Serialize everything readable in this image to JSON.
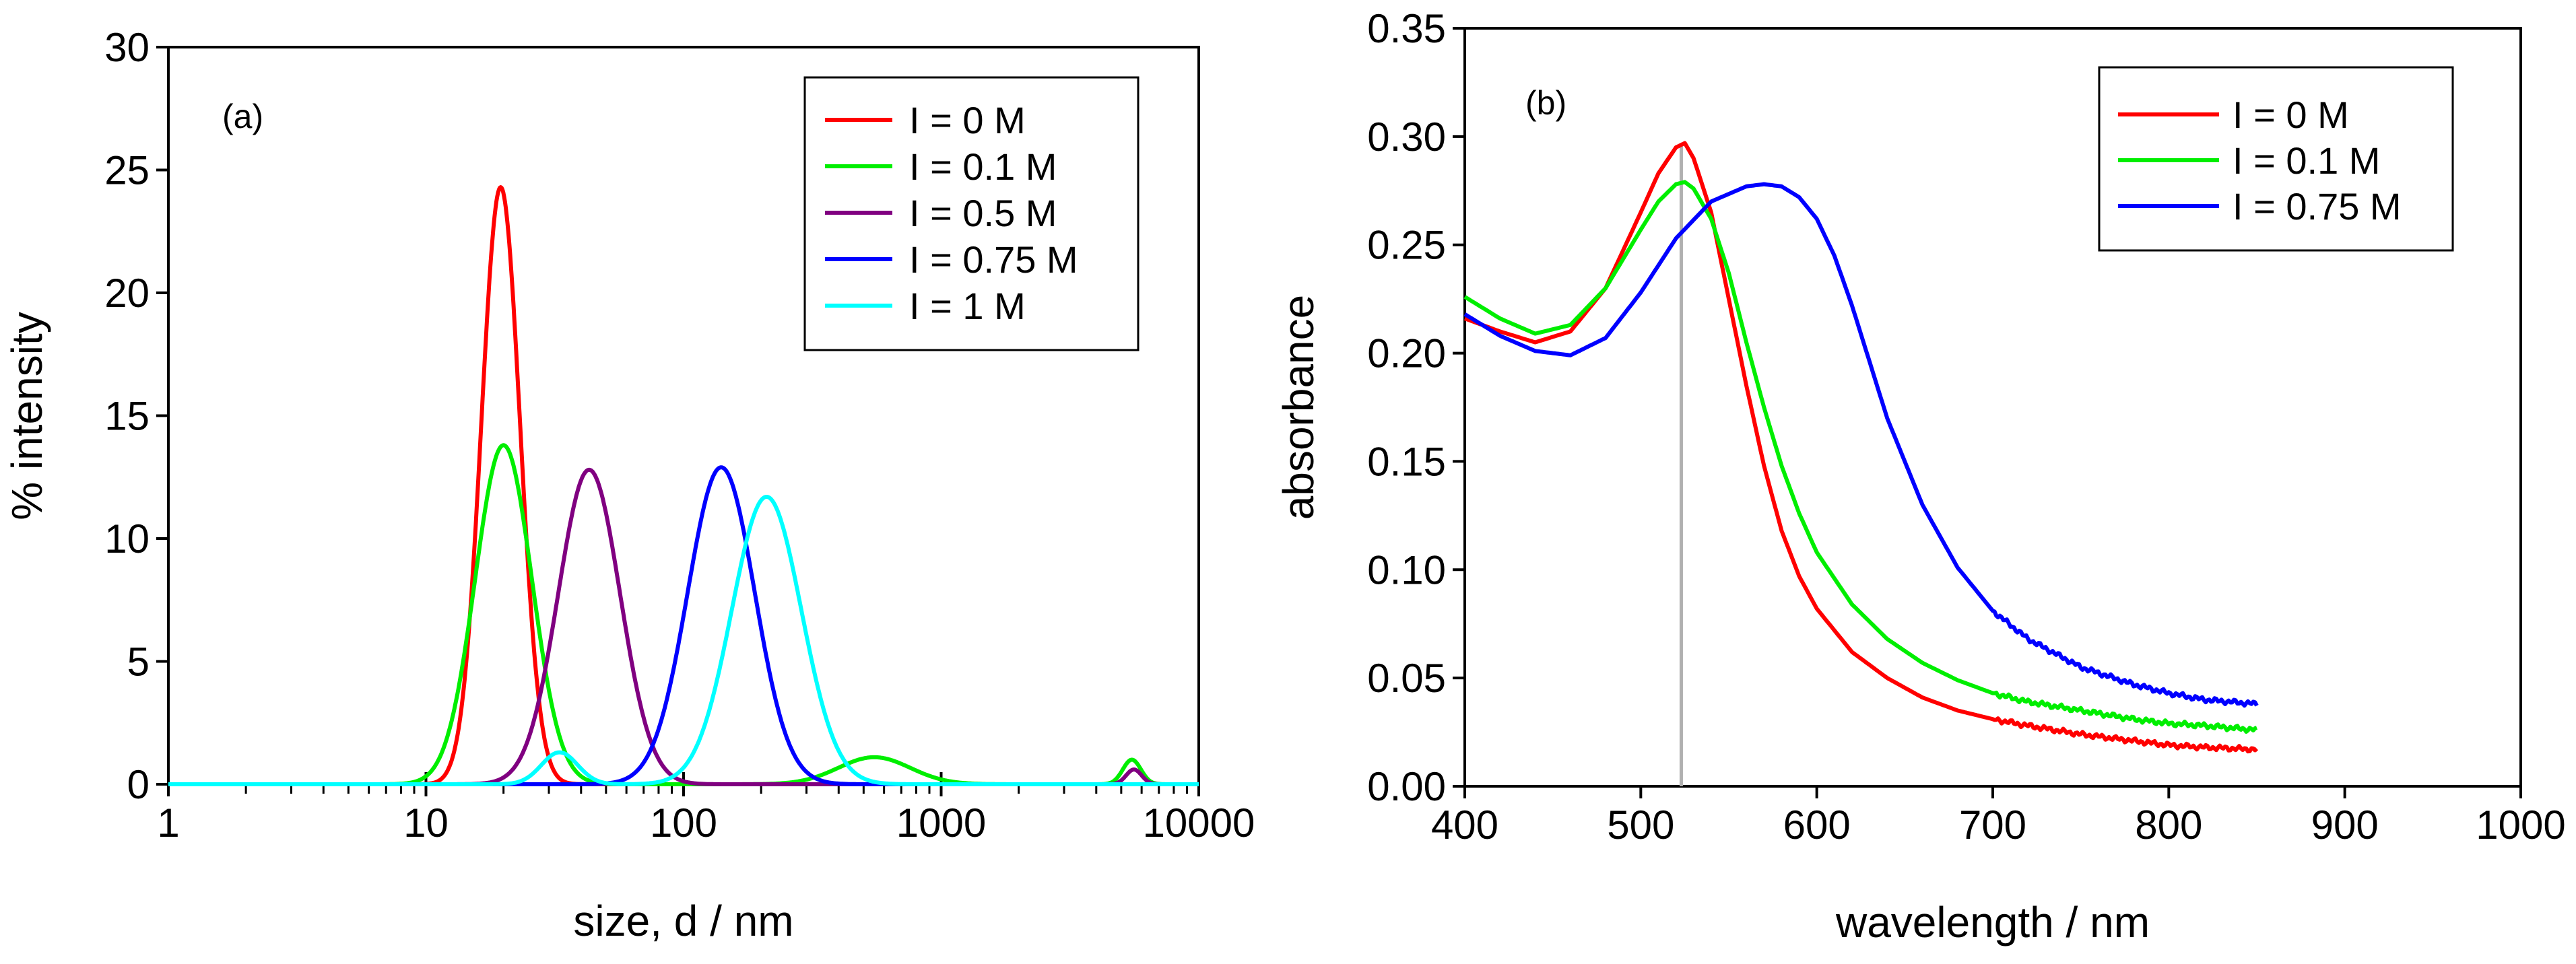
{
  "figure": {
    "background": "#ffffff"
  },
  "chart_data": [
    {
      "id": "a",
      "type": "line",
      "panel_label": "(a)",
      "title": "",
      "xlabel": "size, d / nm",
      "ylabel": "% intensity",
      "x_scale": "log",
      "xlim": [
        1,
        10000
      ],
      "ylim": [
        0,
        30
      ],
      "x_ticks": [
        1,
        10,
        100,
        1000,
        10000
      ],
      "x_tick_labels": [
        "1",
        "10",
        "100",
        "1000",
        "10000"
      ],
      "y_ticks": [
        0,
        5,
        10,
        15,
        20,
        25,
        30
      ],
      "y_tick_labels": [
        "0",
        "5",
        "10",
        "15",
        "20",
        "25",
        "30"
      ],
      "grid": false,
      "legend_position": "top-right",
      "series": [
        {
          "name": "I = 0 M",
          "color": "#ff0000",
          "components": [
            {
              "center": 19.5,
              "sigma_log10": 0.075,
              "height": 24.3
            }
          ]
        },
        {
          "name": "I = 0.1 M",
          "color": "#00ee00",
          "components": [
            {
              "center": 20,
              "sigma_log10": 0.11,
              "height": 13.8
            },
            {
              "center": 550,
              "sigma_log10": 0.14,
              "height": 1.1
            },
            {
              "center": 5500,
              "sigma_log10": 0.035,
              "height": 1.0
            }
          ]
        },
        {
          "name": "I = 0.5 M",
          "color": "#800080",
          "components": [
            {
              "center": 43,
              "sigma_log10": 0.12,
              "height": 12.8
            },
            {
              "center": 5600,
              "sigma_log10": 0.03,
              "height": 0.6
            }
          ]
        },
        {
          "name": "I = 0.75 M",
          "color": "#0000ff",
          "components": [
            {
              "center": 140,
              "sigma_log10": 0.13,
              "height": 12.9
            }
          ]
        },
        {
          "name": "I = 1 M",
          "color": "#00ffff",
          "components": [
            {
              "center": 33,
              "sigma_log10": 0.07,
              "height": 1.3
            },
            {
              "center": 210,
              "sigma_log10": 0.135,
              "height": 11.7
            }
          ]
        }
      ]
    },
    {
      "id": "b",
      "type": "line",
      "panel_label": "(b)",
      "title": "",
      "xlabel": "wavelength / nm",
      "ylabel": "absorbance",
      "x_scale": "linear",
      "xlim": [
        400,
        1000
      ],
      "ylim": [
        0,
        0.35
      ],
      "x_ticks": [
        400,
        500,
        600,
        700,
        800,
        900,
        1000
      ],
      "x_tick_labels": [
        "400",
        "500",
        "600",
        "700",
        "800",
        "900",
        "1000"
      ],
      "y_ticks": [
        0,
        0.05,
        0.1,
        0.15,
        0.2,
        0.25,
        0.3,
        0.35
      ],
      "y_tick_labels": [
        "0.00",
        "0.05",
        "0.10",
        "0.15",
        "0.20",
        "0.25",
        "0.30",
        "0.35"
      ],
      "grid": false,
      "legend_position": "top-right",
      "reference_line": {
        "x": 523,
        "color": "#b0b0b0"
      },
      "series": [
        {
          "name": "I = 0 M",
          "color": "#ff0000",
          "x": [
            400,
            420,
            440,
            460,
            480,
            500,
            510,
            520,
            525,
            530,
            540,
            550,
            560,
            570,
            580,
            590,
            600,
            620,
            640,
            660,
            680,
            700,
            720,
            750,
            780,
            800,
            820,
            850
          ],
          "y": [
            0.216,
            0.21,
            0.205,
            0.21,
            0.23,
            0.265,
            0.283,
            0.295,
            0.297,
            0.29,
            0.265,
            0.225,
            0.185,
            0.148,
            0.118,
            0.097,
            0.082,
            0.062,
            0.05,
            0.041,
            0.035,
            0.031,
            0.028,
            0.024,
            0.021,
            0.019,
            0.018,
            0.017
          ]
        },
        {
          "name": "I = 0.1 M",
          "color": "#00ee00",
          "x": [
            400,
            420,
            440,
            460,
            480,
            500,
            510,
            520,
            525,
            530,
            540,
            550,
            560,
            570,
            580,
            590,
            600,
            620,
            640,
            660,
            680,
            700,
            720,
            750,
            780,
            800,
            820,
            850
          ],
          "y": [
            0.226,
            0.216,
            0.209,
            0.213,
            0.23,
            0.257,
            0.27,
            0.278,
            0.279,
            0.276,
            0.262,
            0.237,
            0.205,
            0.175,
            0.148,
            0.126,
            0.108,
            0.084,
            0.068,
            0.057,
            0.049,
            0.043,
            0.039,
            0.035,
            0.031,
            0.029,
            0.028,
            0.026
          ]
        },
        {
          "name": "I = 0.75 M",
          "color": "#0000ff",
          "x": [
            400,
            420,
            440,
            460,
            480,
            500,
            520,
            540,
            560,
            570,
            580,
            590,
            600,
            610,
            620,
            640,
            660,
            680,
            700,
            720,
            750,
            780,
            800,
            820,
            850
          ],
          "y": [
            0.218,
            0.208,
            0.201,
            0.199,
            0.207,
            0.228,
            0.253,
            0.27,
            0.277,
            0.278,
            0.277,
            0.272,
            0.262,
            0.245,
            0.222,
            0.17,
            0.13,
            0.101,
            0.081,
            0.068,
            0.055,
            0.047,
            0.043,
            0.04,
            0.038
          ]
        }
      ]
    }
  ]
}
